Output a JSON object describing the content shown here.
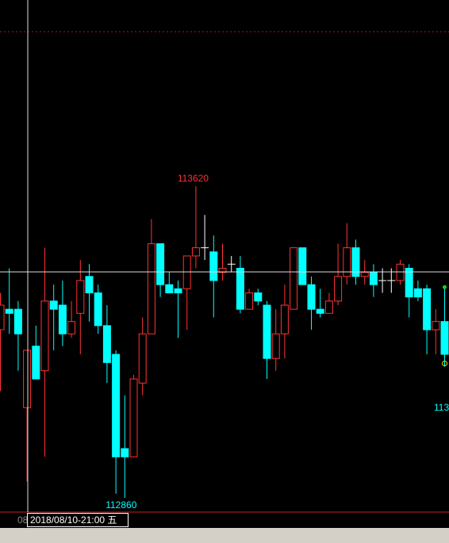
{
  "chart_data": {
    "type": "candlestick",
    "open": [
      113270,
      113320,
      113320,
      113080,
      113230,
      113170,
      113340,
      113330,
      113260,
      113310,
      113400,
      113360,
      113280,
      113210,
      112980,
      112960,
      113140,
      113260,
      113480,
      113380,
      113370,
      113370,
      113450,
      113470,
      113460,
      113410,
      113430,
      113420,
      113320,
      113360,
      113330,
      113200,
      113260,
      113320,
      113470,
      113380,
      113320,
      113310,
      113340,
      113400,
      113470,
      113400,
      113410,
      113390,
      113390,
      113390,
      113420,
      113370,
      113370,
      113270,
      113290
    ],
    "high": [
      113360,
      113420,
      113340,
      113220,
      113280,
      113470,
      113380,
      113390,
      113340,
      113440,
      113430,
      113380,
      113330,
      113220,
      113110,
      113160,
      113300,
      113540,
      113480,
      113410,
      113390,
      113450,
      113620,
      113550,
      113500,
      113480,
      113450,
      113450,
      113370,
      113370,
      113340,
      113320,
      113380,
      113470,
      113470,
      113400,
      113370,
      113360,
      113480,
      113530,
      113490,
      113440,
      113430,
      113420,
      113420,
      113440,
      113430,
      113390,
      113380,
      113320,
      113370
    ],
    "low": [
      113120,
      113260,
      113170,
      112900,
      113150,
      112960,
      113220,
      113230,
      113250,
      113210,
      113290,
      113260,
      113140,
      112870,
      112860,
      112960,
      113110,
      113260,
      113350,
      113360,
      113250,
      113270,
      113420,
      113440,
      113300,
      113390,
      113410,
      113310,
      113320,
      113330,
      113150,
      113170,
      113200,
      113320,
      113380,
      113270,
      113300,
      113310,
      113330,
      113380,
      113380,
      113380,
      113350,
      113360,
      113360,
      113380,
      113300,
      113340,
      113210,
      113210,
      113180
    ],
    "close": [
      113330,
      113310,
      113260,
      113220,
      113150,
      113340,
      113320,
      113260,
      113290,
      113390,
      113360,
      113280,
      113190,
      112960,
      112960,
      113150,
      113260,
      113480,
      113380,
      113360,
      113360,
      113450,
      113470,
      113470,
      113390,
      113420,
      113430,
      113320,
      113360,
      113340,
      113200,
      113260,
      113330,
      113470,
      113380,
      113320,
      113310,
      113340,
      113400,
      113470,
      113400,
      113410,
      113380,
      113390,
      113390,
      113430,
      113350,
      113350,
      113270,
      113290,
      113210
    ],
    "up_color": "#ff3232",
    "down_color": "#00ffff",
    "doji_color": "#ffffff",
    "high_label": "113620",
    "low_label": "112860",
    "cursor_label": "2018/08/10-21:00 五",
    "clipped_labels": [
      "08",
      "113"
    ]
  }
}
